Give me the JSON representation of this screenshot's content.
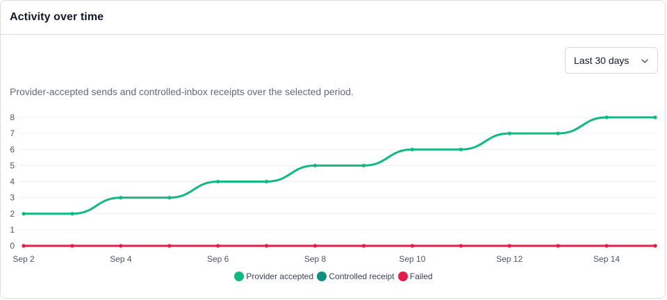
{
  "card": {
    "title": "Activity over time",
    "description": "Provider-accepted sends and controlled-inbox receipts over the selected period."
  },
  "range_select": {
    "value": "Last 30 days",
    "icon": "chevron-down-icon"
  },
  "colors": {
    "provider_accepted": "#10b981",
    "controlled_receipt": "#0f8f7e",
    "failed": "#e11d48",
    "grid": "#eceff3",
    "tick_text": "#4b5563"
  },
  "chart_data": {
    "type": "line",
    "x": [
      "Sep 2",
      "Sep 3",
      "Sep 4",
      "Sep 5",
      "Sep 6",
      "Sep 7",
      "Sep 8",
      "Sep 9",
      "Sep 10",
      "Sep 11",
      "Sep 12",
      "Sep 13",
      "Sep 14",
      "Sep 15"
    ],
    "x_tick_labels": [
      "Sep 2",
      "Sep 4",
      "Sep 6",
      "Sep 8",
      "Sep 10",
      "Sep 12",
      "Sep 14"
    ],
    "y_ticks": [
      0,
      1,
      2,
      3,
      4,
      5,
      6,
      7,
      8
    ],
    "ylim": [
      0,
      8
    ],
    "grid": true,
    "legend_position": "bottom",
    "series": [
      {
        "name": "Provider accepted",
        "values": [
          2,
          2,
          3,
          3,
          4,
          4,
          5,
          5,
          6,
          6,
          7,
          7,
          8,
          8
        ]
      },
      {
        "name": "Controlled receipt",
        "values": [
          0,
          0,
          0,
          0,
          0,
          0,
          0,
          0,
          0,
          0,
          0,
          0,
          0,
          0
        ]
      },
      {
        "name": "Failed",
        "values": [
          0,
          0,
          0,
          0,
          0,
          0,
          0,
          0,
          0,
          0,
          0,
          0,
          0,
          0
        ]
      }
    ]
  },
  "legend": {
    "items": [
      {
        "label": "Provider accepted"
      },
      {
        "label": "Controlled receipt"
      },
      {
        "label": "Failed"
      }
    ]
  }
}
